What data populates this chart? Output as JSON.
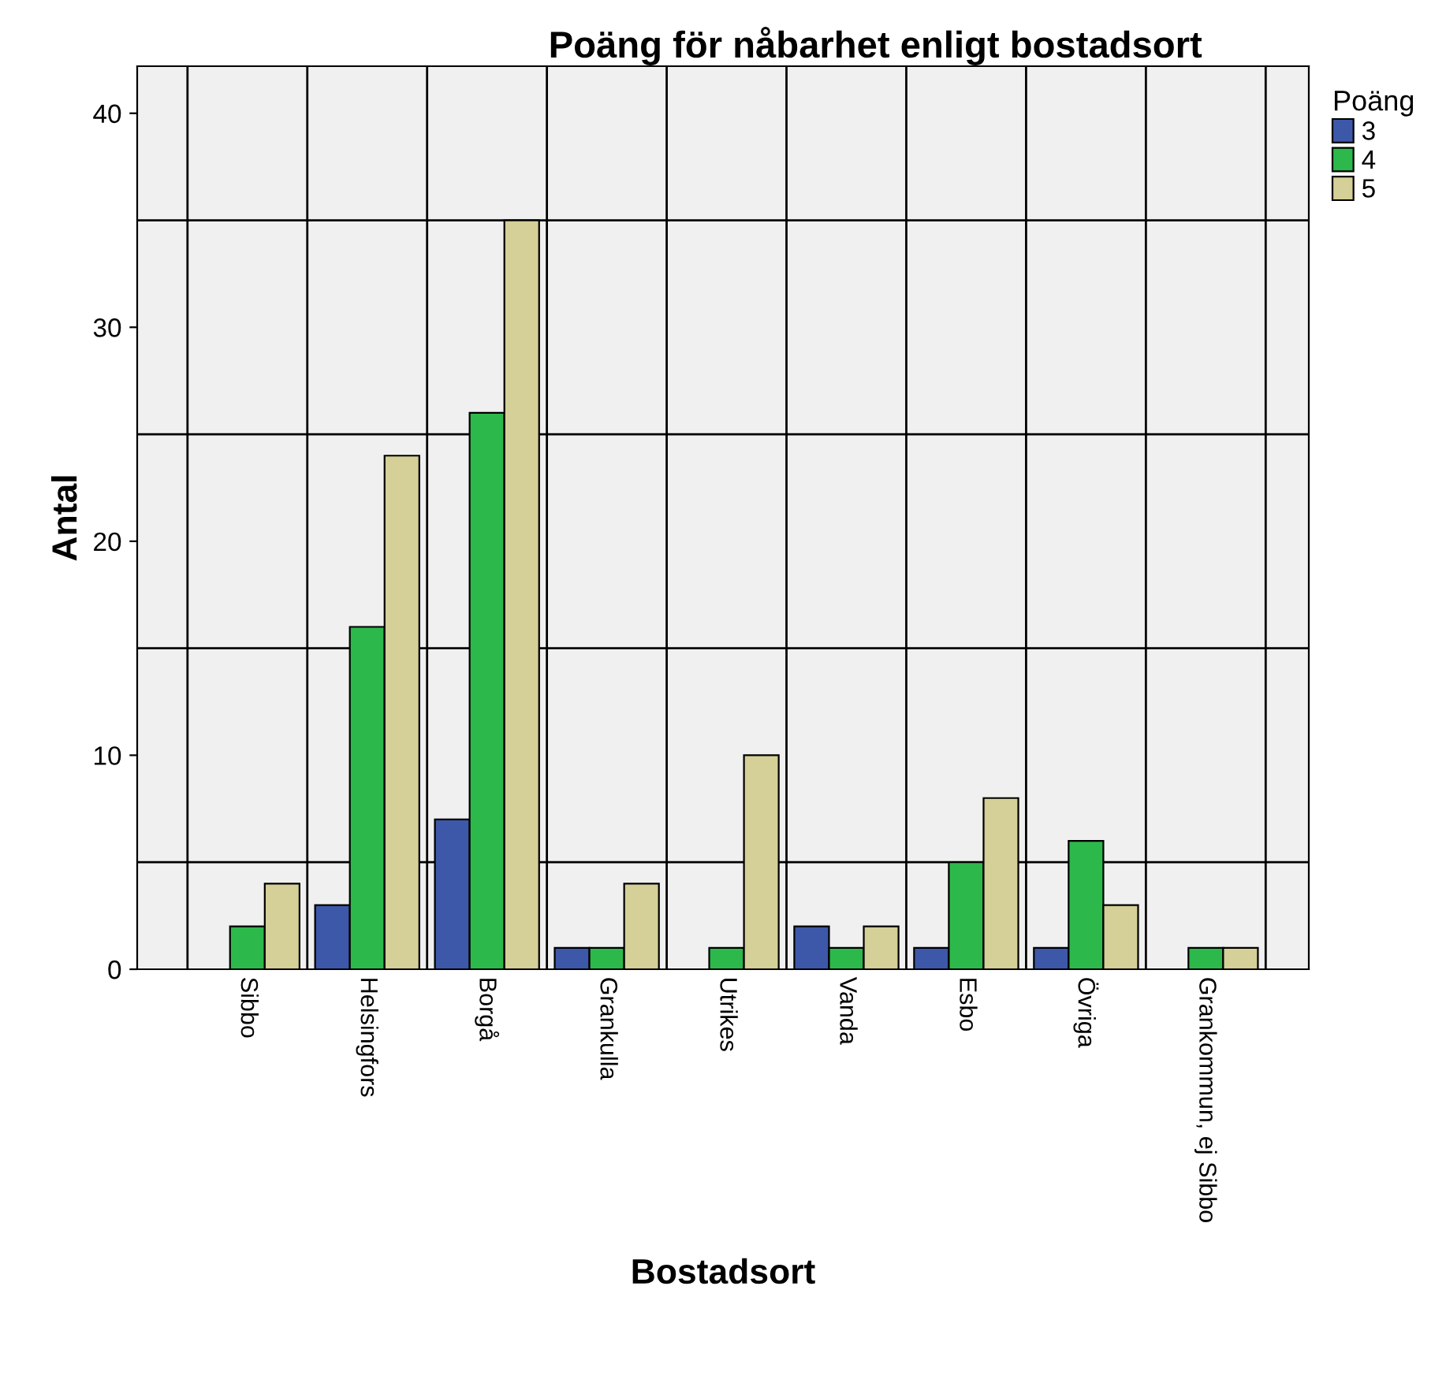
{
  "chart_data": {
    "type": "bar",
    "title": "Poäng för nåbarhet enligt bostadsort",
    "xlabel": "Bostadsort",
    "ylabel": "Antal",
    "legend_title": "Poäng",
    "categories": [
      "Sibbo",
      "Helsingfors",
      "Borgå",
      "Grankulla",
      "Utrikes",
      "Vanda",
      "Esbo",
      "Övriga",
      "Grankommun, ej Sibbo"
    ],
    "series": [
      {
        "name": "3",
        "color": "#3d58a8",
        "values": [
          null,
          3,
          7,
          1,
          null,
          2,
          1,
          1,
          null
        ]
      },
      {
        "name": "4",
        "color": "#2db84b",
        "values": [
          2,
          16,
          26,
          1,
          1,
          1,
          5,
          6,
          1
        ]
      },
      {
        "name": "5",
        "color": "#d5cf98",
        "values": [
          4,
          24,
          35,
          4,
          10,
          2,
          8,
          3,
          1
        ]
      }
    ],
    "ylim": [
      0,
      42.2
    ],
    "yticks": [
      0,
      10,
      20,
      30,
      40
    ],
    "grid": "x",
    "legend": "top right",
    "ref_lines": [
      {
        "axis": "y",
        "value": 5,
        "color": "#000000"
      },
      {
        "axis": "y",
        "value": 15,
        "color": "#000000"
      },
      {
        "axis": "y",
        "value": 25,
        "color": "#000000"
      },
      {
        "axis": "y",
        "value": 35,
        "color": "#000000"
      }
    ]
  }
}
